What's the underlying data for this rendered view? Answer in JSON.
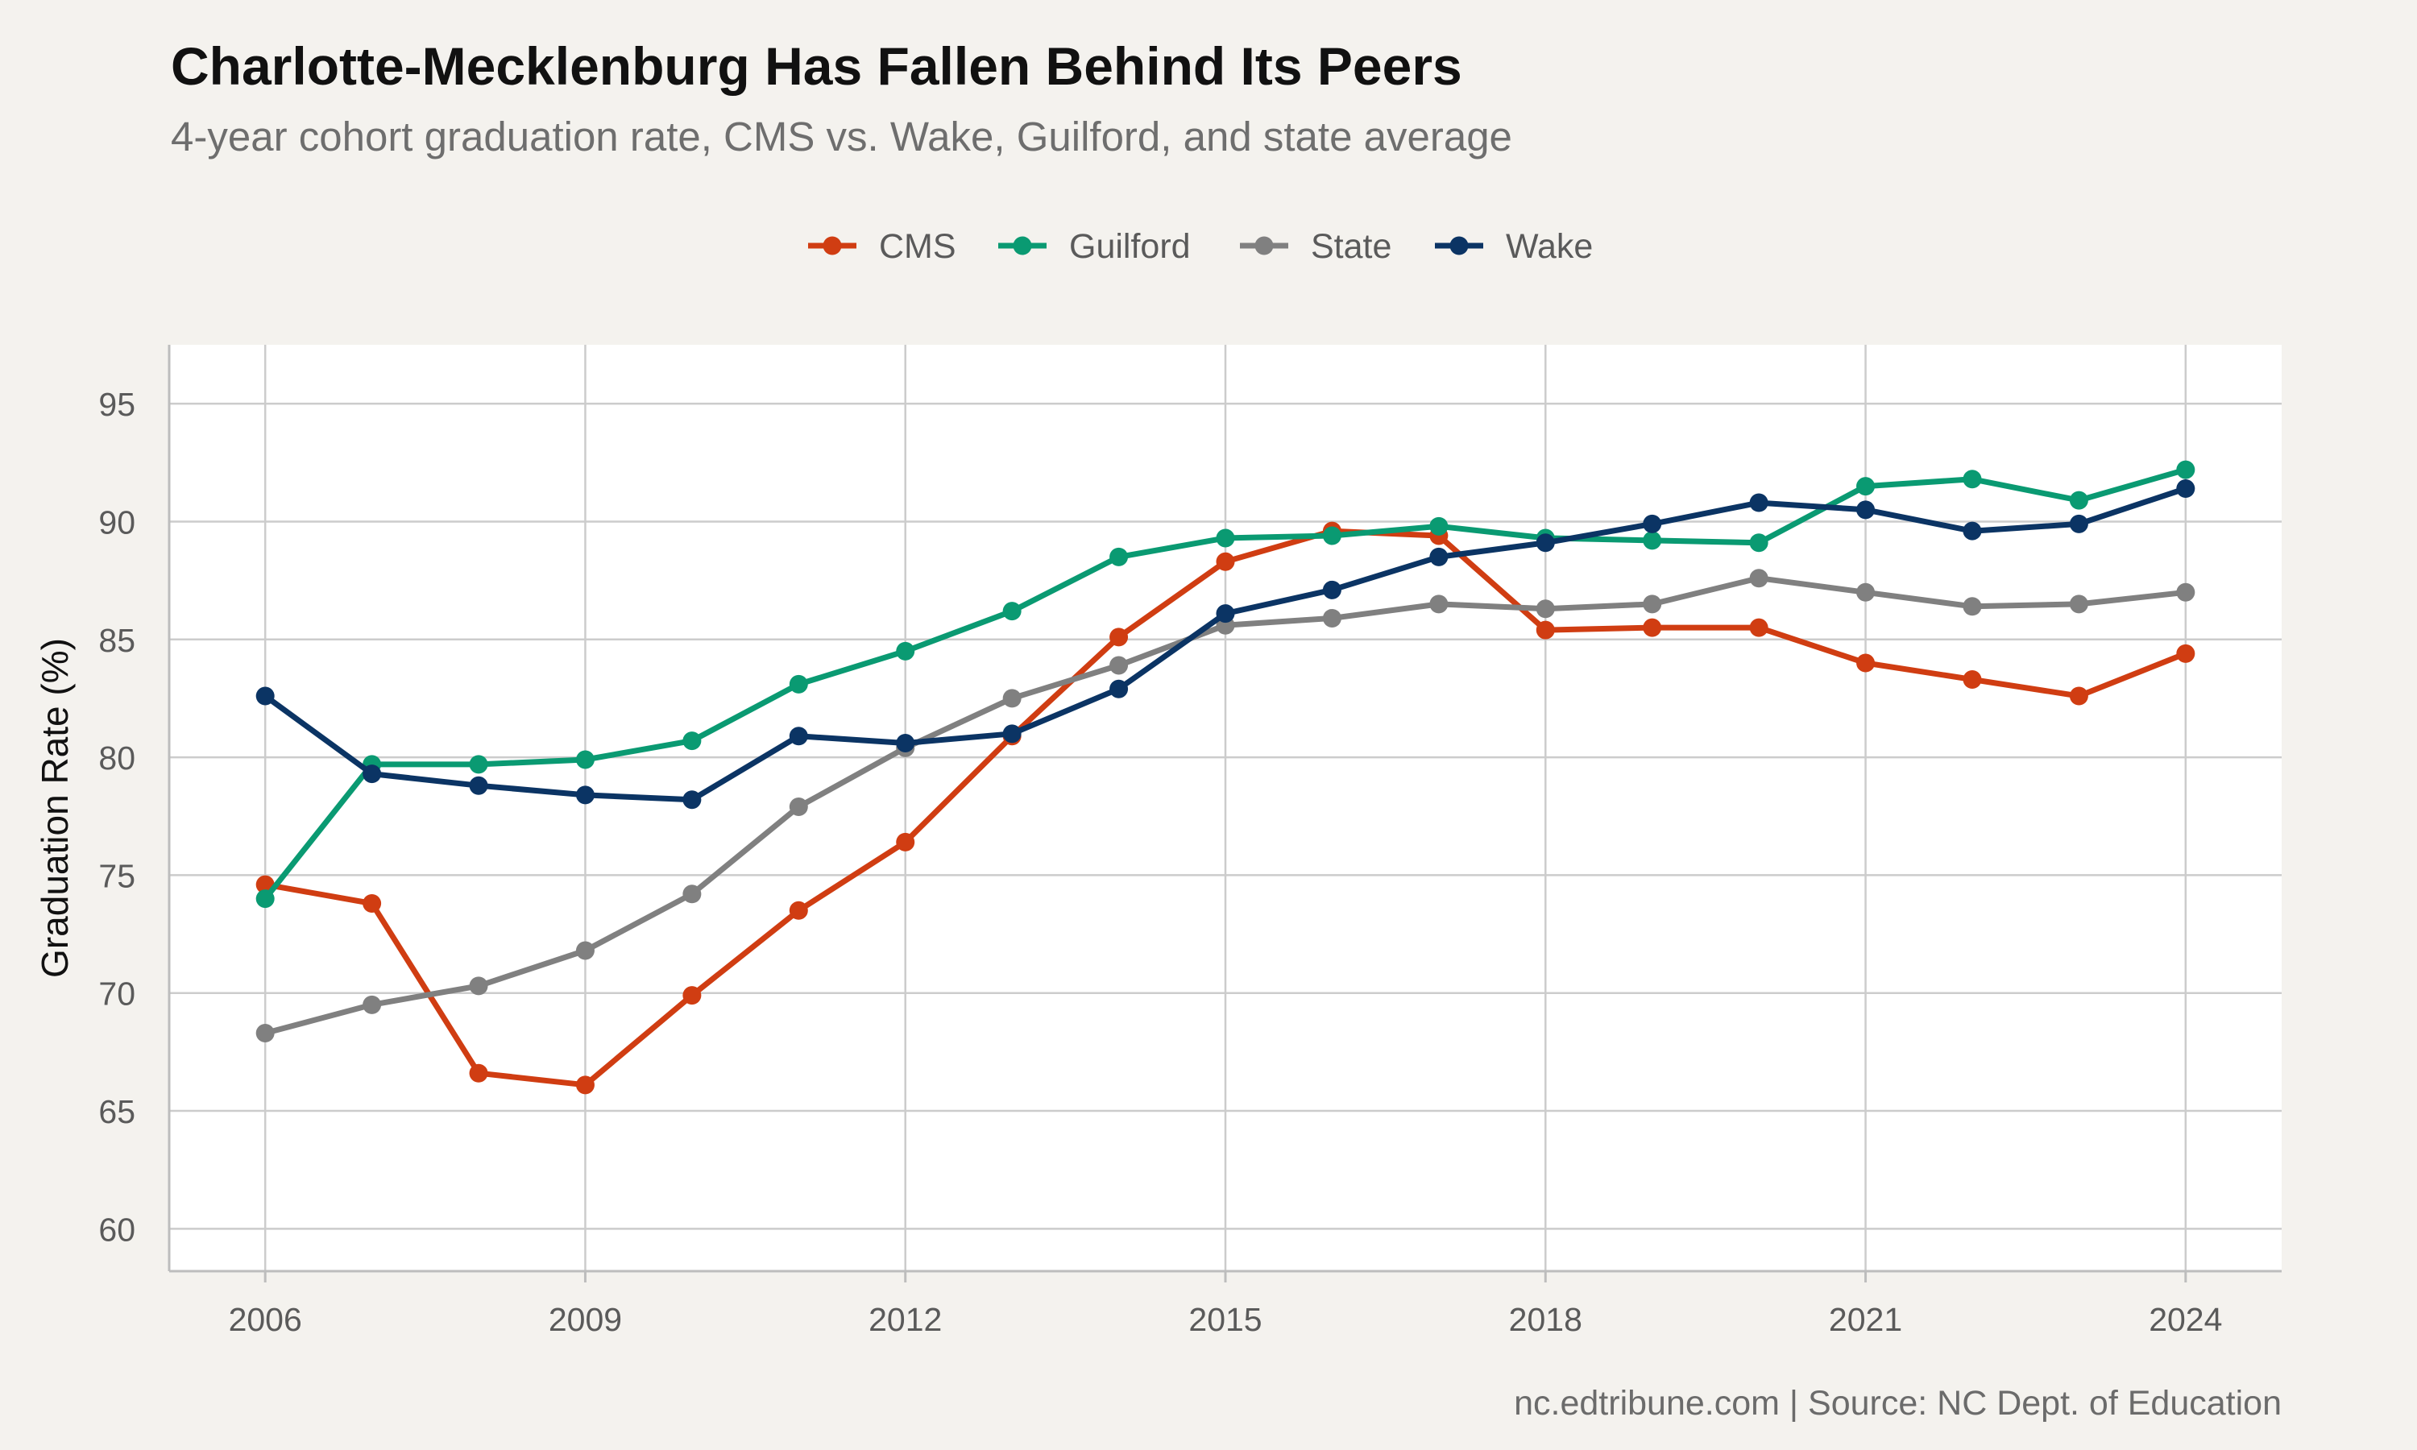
{
  "header": {
    "title": "Charlotte-Mecklenburg Has Fallen Behind Its Peers",
    "subtitle": "4-year cohort graduation rate, CMS vs. Wake, Guilford, and state average"
  },
  "caption": "nc.edtribune.com | Source: NC Dept. of Education",
  "chart_data": {
    "type": "line",
    "title": "Charlotte-Mecklenburg Has Fallen Behind Its Peers",
    "subtitle": "4-year cohort graduation rate, CMS vs. Wake, Guilford, and state average",
    "xlabel": "",
    "ylabel": "Graduation Rate (%)",
    "x": [
      2006,
      2007,
      2008,
      2009,
      2010,
      2011,
      2012,
      2013,
      2014,
      2015,
      2016,
      2017,
      2018,
      2019,
      2020,
      2021,
      2022,
      2023,
      2024
    ],
    "xticks": [
      2006,
      2009,
      2012,
      2015,
      2018,
      2021,
      2024
    ],
    "yticks": [
      60,
      65,
      70,
      75,
      80,
      85,
      90,
      95
    ],
    "xlim": [
      2005.1,
      2024.9
    ],
    "ylim": [
      58.2,
      97.5
    ],
    "grid": true,
    "legend_position": "top",
    "series": [
      {
        "name": "CMS",
        "color": "#d03d12",
        "values": [
          74.6,
          73.8,
          66.6,
          66.1,
          69.9,
          73.5,
          76.4,
          80.9,
          85.1,
          88.3,
          89.6,
          89.4,
          85.4,
          85.5,
          85.5,
          84.0,
          83.3,
          82.6,
          84.4
        ]
      },
      {
        "name": "Guilford",
        "color": "#0a9a72",
        "values": [
          74.0,
          79.7,
          79.7,
          79.9,
          80.7,
          83.1,
          84.5,
          86.2,
          88.5,
          89.3,
          89.4,
          89.8,
          89.3,
          89.2,
          89.1,
          91.5,
          91.8,
          90.9,
          92.2
        ]
      },
      {
        "name": "State",
        "color": "#808080",
        "values": [
          68.3,
          69.5,
          70.3,
          71.8,
          74.2,
          77.9,
          80.4,
          82.5,
          83.9,
          85.6,
          85.9,
          86.5,
          86.3,
          86.5,
          87.6,
          87.0,
          86.4,
          86.5,
          87.0
        ]
      },
      {
        "name": "Wake",
        "color": "#0b3464",
        "values": [
          82.6,
          79.3,
          78.8,
          78.4,
          78.2,
          80.9,
          80.6,
          81.0,
          82.9,
          86.1,
          87.1,
          88.5,
          89.1,
          89.9,
          90.8,
          90.5,
          89.6,
          89.9,
          91.4
        ]
      }
    ]
  }
}
